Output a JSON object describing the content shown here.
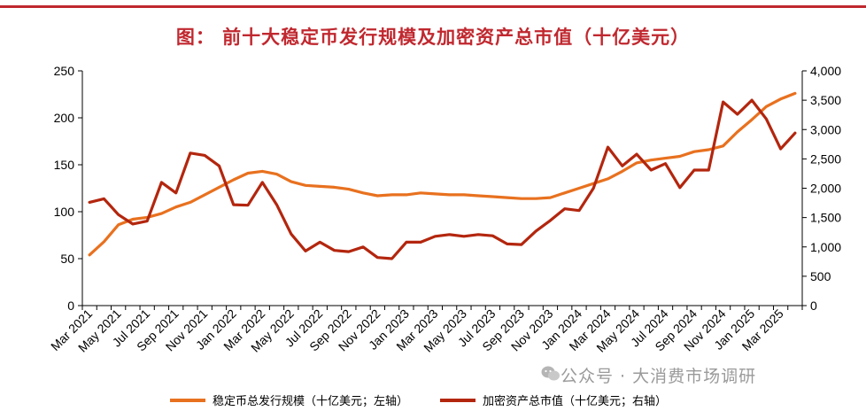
{
  "title": "图：  前十大稳定币发行规模及加密资产总市值（十亿美元）",
  "colors": {
    "title": "#c0282f",
    "rule": "#c0282f",
    "stablecoin": "#e8711f",
    "crypto": "#b3260e",
    "axis": "#000000",
    "watermark": "#9a9a9a"
  },
  "watermark": "公众号 · 大消费市场调研",
  "watermark_icon": "wechat-icon",
  "chart_data": {
    "type": "line",
    "x": [
      "Mar 2021",
      "Apr 2021",
      "May 2021",
      "Jun 2021",
      "Jul 2021",
      "Aug 2021",
      "Sep 2021",
      "Oct 2021",
      "Nov 2021",
      "Dec 2021",
      "Jan 2022",
      "Feb 2022",
      "Mar 2022",
      "Apr 2022",
      "May 2022",
      "Jun 2022",
      "Jul 2022",
      "Aug 2022",
      "Sep 2022",
      "Oct 2022",
      "Nov 2022",
      "Dec 2022",
      "Jan 2023",
      "Feb 2023",
      "Mar 2023",
      "Apr 2023",
      "May 2023",
      "Jun 2023",
      "Jul 2023",
      "Aug 2023",
      "Sep 2023",
      "Oct 2023",
      "Nov 2023",
      "Dec 2023",
      "Jan 2024",
      "Feb 2024",
      "Mar 2024",
      "Apr 2024",
      "May 2024",
      "Jun 2024",
      "Jul 2024",
      "Aug 2024",
      "Sep 2024",
      "Oct 2024",
      "Nov 2024",
      "Dec 2024",
      "Jan 2025",
      "Feb 2025",
      "Mar 2025",
      "Apr 2025"
    ],
    "x_tick_labels": [
      "Mar 2021",
      "May 2021",
      "Jul 2021",
      "Sep 2021",
      "Nov 2021",
      "Jan 2022",
      "Mar 2022",
      "May 2022",
      "Jul 2022",
      "Sep 2022",
      "Nov 2022",
      "Jan 2023",
      "Mar 2023",
      "May 2023",
      "Jul 2023",
      "Sep 2023",
      "Nov 2023",
      "Jan 2024",
      "Mar 2024",
      "May 2024",
      "Jul 2024",
      "Sep 2024",
      "Nov 2024",
      "Jan 2025",
      "Mar 2025"
    ],
    "y_left": {
      "lim": [
        0,
        250
      ],
      "ticks": [
        0,
        50,
        100,
        150,
        200,
        250
      ]
    },
    "y_right": {
      "lim": [
        0,
        4000
      ],
      "ticks": [
        0,
        500,
        1000,
        1500,
        2000,
        2500,
        3000,
        3500,
        4000
      ],
      "tick_labels": [
        "0",
        "500",
        "1,000",
        "1,500",
        "2,000",
        "2,500",
        "3,000",
        "3,500",
        "4,000"
      ]
    },
    "legend_position": "bottom",
    "grid": false,
    "series": [
      {
        "name": "稳定币总发行规模（十亿美元；左轴）",
        "axis": "left",
        "color": "#e8711f",
        "values": [
          54,
          68,
          86,
          92,
          94,
          98,
          105,
          110,
          118,
          126,
          134,
          141,
          143,
          140,
          132,
          128,
          127,
          126,
          124,
          120,
          117,
          118,
          118,
          120,
          119,
          118,
          118,
          117,
          116,
          115,
          114,
          114,
          115,
          120,
          125,
          130,
          135,
          143,
          152,
          155,
          157,
          159,
          164,
          166,
          170,
          185,
          198,
          212,
          220,
          226
        ]
      },
      {
        "name": "加密资产总市值（十亿美元；右轴）",
        "axis": "right",
        "color": "#b3260e",
        "values": [
          1760,
          1820,
          1550,
          1390,
          1440,
          2100,
          1920,
          2600,
          2560,
          2380,
          1720,
          1710,
          2100,
          1720,
          1220,
          930,
          1080,
          940,
          920,
          1000,
          820,
          800,
          1080,
          1080,
          1180,
          1210,
          1180,
          1210,
          1190,
          1050,
          1040,
          1270,
          1450,
          1650,
          1620,
          2000,
          2700,
          2380,
          2580,
          2310,
          2420,
          2010,
          2310,
          2310,
          3470,
          3260,
          3500,
          3180,
          2670,
          2940
        ]
      }
    ]
  }
}
